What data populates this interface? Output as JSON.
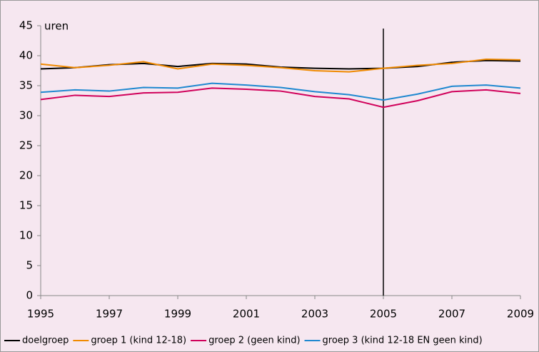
{
  "chart_data": {
    "type": "line",
    "y_label": "uren",
    "x": [
      1995,
      1996,
      1997,
      1998,
      1999,
      2000,
      2001,
      2002,
      2003,
      2004,
      2005,
      2006,
      2007,
      2008,
      2009
    ],
    "xlim": [
      1995,
      2009
    ],
    "xticks": [
      1995,
      1997,
      1999,
      2001,
      2003,
      2005,
      2007,
      2009
    ],
    "ylim": [
      0,
      45
    ],
    "yticks": [
      0,
      5,
      10,
      15,
      20,
      25,
      30,
      35,
      40,
      45
    ],
    "vline": 2005,
    "series": [
      {
        "name": "doelgroep",
        "color": "#000000",
        "values": [
          37.8,
          38.0,
          38.5,
          38.7,
          38.2,
          38.7,
          38.6,
          38.1,
          37.9,
          37.8,
          37.9,
          38.2,
          38.9,
          39.2,
          39.1
        ]
      },
      {
        "name": "groep 1 (kind 12-18)",
        "color": "#f08a00",
        "values": [
          38.6,
          38.0,
          38.4,
          39.0,
          37.8,
          38.6,
          38.4,
          38.0,
          37.5,
          37.3,
          37.9,
          38.4,
          38.7,
          39.4,
          39.3
        ]
      },
      {
        "name": "groep 2 (geen kind)",
        "color": "#d0005a",
        "values": [
          32.7,
          33.4,
          33.2,
          33.8,
          33.9,
          34.6,
          34.4,
          34.1,
          33.2,
          32.8,
          31.4,
          32.5,
          34.0,
          34.3,
          33.7
        ]
      },
      {
        "name": "groep 3 (kind 12-18 EN geen kind)",
        "color": "#1e88d0",
        "values": [
          33.9,
          34.3,
          34.1,
          34.7,
          34.6,
          35.4,
          35.1,
          34.7,
          34.0,
          33.5,
          32.6,
          33.6,
          34.9,
          35.1,
          34.6
        ]
      }
    ]
  }
}
